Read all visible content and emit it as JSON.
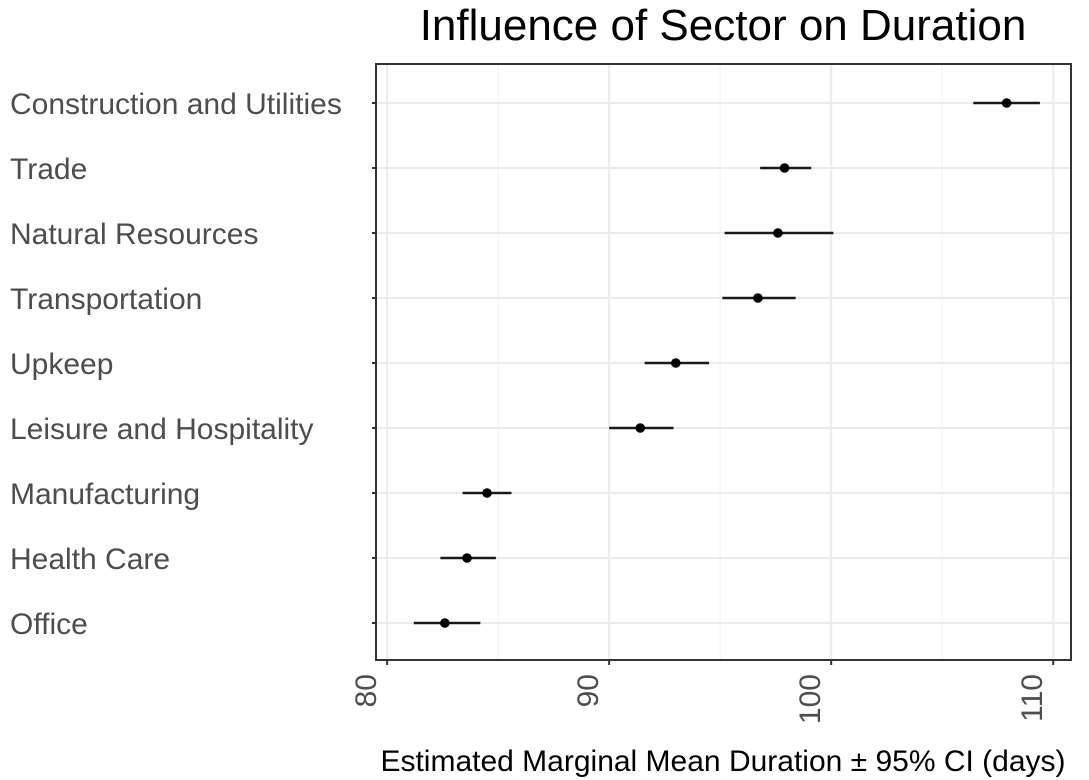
{
  "chart_data": {
    "type": "scatter",
    "title": "Influence of Sector on Duration",
    "xlabel": "Estimated Marginal Mean Duration ± 95% CI (days)",
    "ylabel": "",
    "xlim": [
      79.5,
      110.8
    ],
    "x_ticks": [
      "80",
      "90",
      "100",
      "110"
    ],
    "grid": true,
    "legend": "none",
    "point_color": "#000000",
    "categories": [
      "Construction and Utilities",
      "Trade",
      "Natural Resources",
      "Transportation",
      "Upkeep",
      "Leisure and Hospitality",
      "Manufacturing",
      "Health Care",
      "Office"
    ],
    "series": [
      {
        "values": [
          107.9,
          97.9,
          97.6,
          96.7,
          93.0,
          91.4,
          84.5,
          83.6,
          82.6
        ],
        "ci_lower": [
          106.4,
          96.8,
          95.2,
          95.1,
          91.6,
          90.0,
          83.4,
          82.4,
          81.2
        ],
        "ci_upper": [
          109.4,
          99.1,
          100.1,
          98.4,
          94.5,
          92.9,
          85.6,
          84.9,
          84.2
        ]
      }
    ]
  }
}
